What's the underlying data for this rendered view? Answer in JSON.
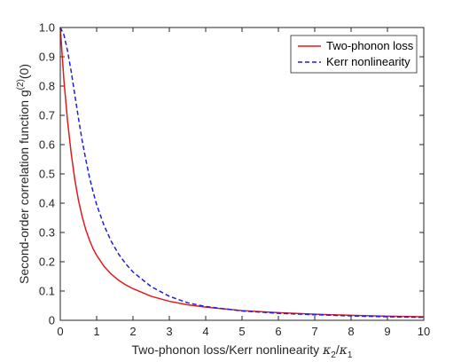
{
  "chart_data": {
    "type": "line",
    "title": "",
    "xlabel": "Two-phonon loss/Kerr nonlinearity",
    "xlabel_math": {
      "num": "κ",
      "num_sub": "2",
      "slash": "/",
      "den": "κ",
      "den_sub": "1"
    },
    "ylabel": "Second-order correlation function g",
    "ylabel_sup": "(2)",
    "ylabel_tail": "(0)",
    "xlim": [
      0,
      10
    ],
    "ylim": [
      0,
      1
    ],
    "xticks": [
      0,
      1,
      2,
      3,
      4,
      5,
      6,
      7,
      8,
      9,
      10
    ],
    "yticks": [
      0,
      0.1,
      0.2,
      0.3,
      0.4,
      0.5,
      0.6,
      0.7,
      0.8,
      0.9,
      1
    ],
    "ytick_labels": [
      "0",
      "0.1",
      "0.2",
      "0.3",
      "0.4",
      "0.5",
      "0.6",
      "0.7",
      "0.8",
      "0.9",
      "1.0"
    ],
    "grid": false,
    "legend_position": "top-right",
    "x": [
      0,
      0.1,
      0.2,
      0.3,
      0.4,
      0.5,
      0.6,
      0.7,
      0.8,
      0.9,
      1.0,
      1.2,
      1.4,
      1.6,
      1.8,
      2.0,
      2.5,
      3.0,
      3.5,
      4.0,
      5.0,
      6.0,
      7.0,
      8.0,
      9.0,
      10.0
    ],
    "series": [
      {
        "name": "Two-phonon loss",
        "color": "#e31a1c",
        "style": "solid",
        "values": [
          1.0,
          0.82,
          0.68,
          0.57,
          0.48,
          0.41,
          0.355,
          0.31,
          0.275,
          0.245,
          0.222,
          0.185,
          0.158,
          0.137,
          0.121,
          0.108,
          0.082,
          0.065,
          0.053,
          0.045,
          0.033,
          0.026,
          0.021,
          0.017,
          0.014,
          0.012
        ]
      },
      {
        "name": "Kerr nonlinearity",
        "color": "#1f1fd6",
        "style": "dashed",
        "values": [
          1.0,
          0.975,
          0.92,
          0.85,
          0.77,
          0.69,
          0.615,
          0.55,
          0.49,
          0.44,
          0.395,
          0.325,
          0.27,
          0.227,
          0.193,
          0.165,
          0.115,
          0.082,
          0.06,
          0.047,
          0.032,
          0.024,
          0.019,
          0.015,
          0.012,
          0.01
        ]
      }
    ]
  }
}
